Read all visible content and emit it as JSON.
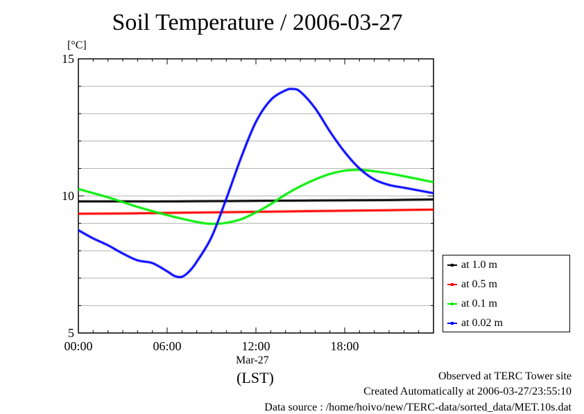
{
  "chart_data": {
    "type": "line",
    "title": "Soil Temperature / 2006-03-27",
    "ylabel": "[°C]",
    "xlabel": "(LST)",
    "xdate_label": "Mar-27",
    "ylim": [
      5,
      15
    ],
    "xlim_hours": [
      0,
      24
    ],
    "yticks": [
      "5",
      "10",
      "15"
    ],
    "xticks": [
      "00:00",
      "06:00",
      "12:00",
      "18:00"
    ],
    "grid": "horizontal",
    "legend_position": "right",
    "series": [
      {
        "name": "at 1.0 m",
        "color": "#000000",
        "x": [
          0,
          3,
          6,
          9,
          12,
          15,
          18,
          21,
          24
        ],
        "y": [
          9.8,
          9.8,
          9.8,
          9.81,
          9.82,
          9.83,
          9.84,
          9.85,
          9.87
        ]
      },
      {
        "name": "at 0.5 m",
        "color": "#ff0000",
        "x": [
          0,
          3,
          6,
          9,
          12,
          15,
          18,
          21,
          24
        ],
        "y": [
          9.35,
          9.36,
          9.38,
          9.4,
          9.42,
          9.44,
          9.46,
          9.48,
          9.5
        ]
      },
      {
        "name": "at 0.1 m",
        "color": "#00ee00",
        "x": [
          0,
          2,
          4,
          6,
          8,
          9,
          10,
          11,
          12,
          13,
          14,
          15,
          16,
          17,
          18,
          19,
          20,
          21,
          22,
          24
        ],
        "y": [
          10.25,
          9.95,
          9.6,
          9.3,
          9.05,
          8.98,
          9.02,
          9.15,
          9.4,
          9.7,
          10.05,
          10.35,
          10.6,
          10.8,
          10.92,
          10.95,
          10.9,
          10.82,
          10.72,
          10.5
        ]
      },
      {
        "name": "at 0.02 m",
        "color": "#0000ff",
        "x": [
          0,
          1,
          2,
          3,
          4,
          5,
          6,
          6.5,
          7,
          7.5,
          8,
          9,
          10,
          11,
          12,
          13,
          14,
          14.5,
          15,
          16,
          17,
          18,
          19,
          20,
          21,
          22,
          23,
          24
        ],
        "y": [
          8.75,
          8.45,
          8.2,
          7.9,
          7.65,
          7.55,
          7.25,
          7.08,
          7.05,
          7.25,
          7.6,
          8.5,
          9.9,
          11.4,
          12.7,
          13.5,
          13.85,
          13.9,
          13.8,
          13.2,
          12.35,
          11.6,
          11.0,
          10.6,
          10.4,
          10.3,
          10.2,
          10.1
        ]
      }
    ]
  },
  "footer": {
    "observed": "Observed at TERC Tower site",
    "created": "Created Automatically at 2006-03-27/23:55:10",
    "source": "Data source : /home/hoivo/new/TERC-data/sorted_data/MET.10s.dat"
  }
}
